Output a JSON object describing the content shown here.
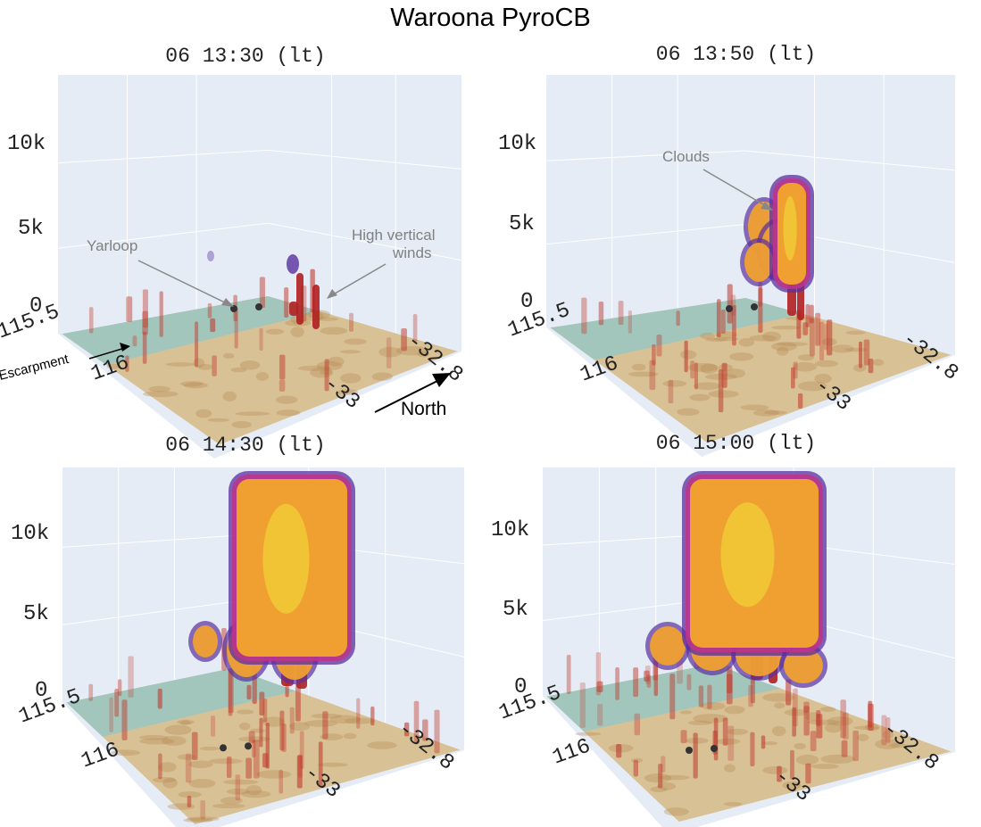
{
  "title": "Waroona PyroCB",
  "colors": {
    "pane": "#e5ecf6",
    "grid": "#ffffff",
    "terrain_light": "#d9c196",
    "terrain_dark": "#b48a52",
    "sea": "#9cc7c0",
    "wind": "#c0392b",
    "cloud_outer": "#5a2fa0",
    "cloud_mid": "#c0338a",
    "cloud_core": "#f0a030",
    "cloud_hot": "#f3e23a"
  },
  "panels": [
    {
      "title": "06 13:30 (lt)",
      "z_ticks": [
        "10k",
        "5k",
        "0"
      ],
      "lon_ticks": [
        "115.5",
        "116"
      ],
      "lat_ticks": [
        "-32.8",
        "-33"
      ],
      "cloud_top_km": 2.8
    },
    {
      "title": "06 13:50 (lt)",
      "z_ticks": [
        "10k",
        "5k",
        "0"
      ],
      "lon_ticks": [
        "115.5",
        "116"
      ],
      "lat_ticks": [
        "-32.8",
        "-33"
      ],
      "cloud_top_km": 7.5
    },
    {
      "title": "06 14:30 (lt)",
      "z_ticks": [
        "10k",
        "5k",
        "0"
      ],
      "lon_ticks": [
        "115.5",
        "116"
      ],
      "lat_ticks": [
        "-32.8",
        "-33"
      ],
      "cloud_top_km": 12.3
    },
    {
      "title": "06 15:00 (lt)",
      "z_ticks": [
        "10k",
        "5k",
        "0"
      ],
      "lon_ticks": [
        "115.5",
        "116"
      ],
      "lat_ticks": [
        "-32.8",
        "-33"
      ],
      "cloud_top_km": 12.5
    }
  ],
  "annotations": {
    "yarloop": "Yarloop",
    "high_vertical_winds_line1": "High vertical",
    "high_vertical_winds_line2": "winds",
    "clouds": "Clouds",
    "escarpment": "Escarpment",
    "north": "North"
  },
  "chart_data": {
    "type": "3d volume",
    "title": "Waroona PyroCB",
    "axes": {
      "x": {
        "label": "",
        "ticks": [
          115.5,
          116
        ]
      },
      "y": {
        "label": "",
        "ticks": [
          -32.8,
          -33
        ]
      },
      "z": {
        "label": "",
        "ticks": [
          "0",
          "5k",
          "10k"
        ],
        "range": [
          0,
          13000
        ]
      }
    },
    "frames": [
      "06 13:30 (lt)",
      "06 13:50 (lt)",
      "06 14:30 (lt)",
      "06 15:00 (lt)"
    ],
    "cloud_top_m": [
      2800,
      7500,
      12300,
      12500
    ]
  }
}
